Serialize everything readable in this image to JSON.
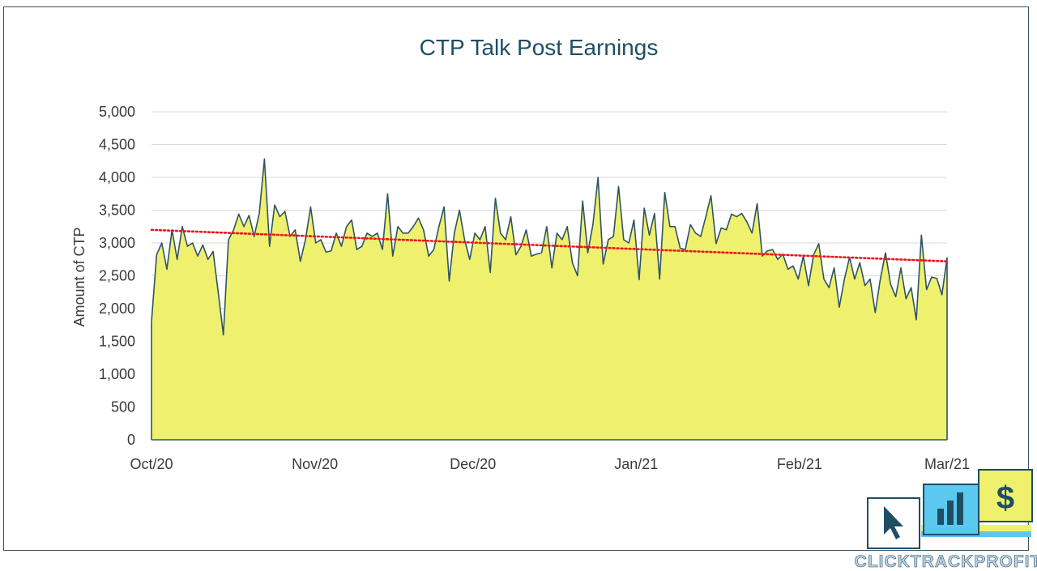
{
  "colors": {
    "area_fill": "#eff06d",
    "line": "#2e5465",
    "trendline": "#e8181c",
    "grid": "#d9d9d9",
    "frame": "#3c5363",
    "title": "#1f4e64",
    "logo_white": "#ffffff",
    "logo_blue": "#5bc8ef",
    "logo_yellow": "#eff06d",
    "logo_dark": "#1f4e64"
  },
  "logo": {
    "brand": "CLICKTRACKPROFIT",
    "icons": [
      "cursor-icon",
      "bar-chart-icon",
      "dollar-icon"
    ]
  },
  "chart_data": {
    "type": "area",
    "title": "CTP Talk Post Earnings",
    "xlabel": "",
    "ylabel": "Amount of CTP",
    "ylim": [
      0,
      5000
    ],
    "y_ticks": [
      "0",
      "500",
      "1,000",
      "1,500",
      "2,000",
      "2,500",
      "3,000",
      "3,500",
      "4,000",
      "4,500",
      "5,000"
    ],
    "y_tick_values": [
      0,
      500,
      1000,
      1500,
      2000,
      2500,
      3000,
      3500,
      4000,
      4500,
      5000
    ],
    "x_tick_labels": [
      "Oct/20",
      "Nov/20",
      "Dec/20",
      "Jan/21",
      "Feb/21",
      "Mar/21"
    ],
    "x_tick_dates": [
      "2020-10-01",
      "2020-11-01",
      "2020-12-01",
      "2021-01-01",
      "2021-02-01",
      "2021-03-01"
    ],
    "start_date": "2020-10-01",
    "grid": true,
    "legend": "none",
    "trendline": {
      "type": "linear",
      "style": "dotted",
      "start_value": 3200,
      "end_value": 2720
    },
    "series": [
      {
        "values": [
          1800,
          2820,
          3000,
          2600,
          3200,
          2750,
          3250,
          2950,
          3000,
          2800,
          2970,
          2750,
          2870,
          2250,
          1600,
          3050,
          3200,
          3440,
          3250,
          3420,
          3100,
          3450,
          4280,
          2950,
          3580,
          3400,
          3480,
          3100,
          3200,
          2720,
          3050,
          3550,
          3000,
          3050,
          2860,
          2880,
          3150,
          2950,
          3250,
          3350,
          2900,
          2950,
          3150,
          3100,
          3150,
          2900,
          3750,
          2800,
          3250,
          3150,
          3150,
          3250,
          3380,
          3200,
          2800,
          2900,
          3250,
          3550,
          2420,
          3150,
          3500,
          3050,
          2750,
          3150,
          3050,
          3250,
          2550,
          3680,
          3150,
          3050,
          3400,
          2820,
          2950,
          3200,
          2800,
          2830,
          2850,
          3250,
          2620,
          3150,
          3050,
          3250,
          2700,
          2500,
          3640,
          2850,
          3280,
          4000,
          2680,
          3050,
          3100,
          3860,
          3050,
          3000,
          3350,
          2440,
          3530,
          3120,
          3450,
          2450,
          3770,
          3250,
          3250,
          2920,
          2900,
          3280,
          3150,
          3100,
          3400,
          3720,
          2990,
          3230,
          3200,
          3440,
          3400,
          3450,
          3320,
          3150,
          3600,
          2800,
          2880,
          2900,
          2750,
          2830,
          2600,
          2650,
          2450,
          2800,
          2350,
          2820,
          2990,
          2450,
          2320,
          2620,
          2020,
          2450,
          2780,
          2450,
          2700,
          2350,
          2450,
          1940,
          2450,
          2850,
          2370,
          2180,
          2620,
          2150,
          2320,
          1830,
          3120,
          2290,
          2480,
          2460,
          2210,
          2780
        ]
      }
    ]
  }
}
